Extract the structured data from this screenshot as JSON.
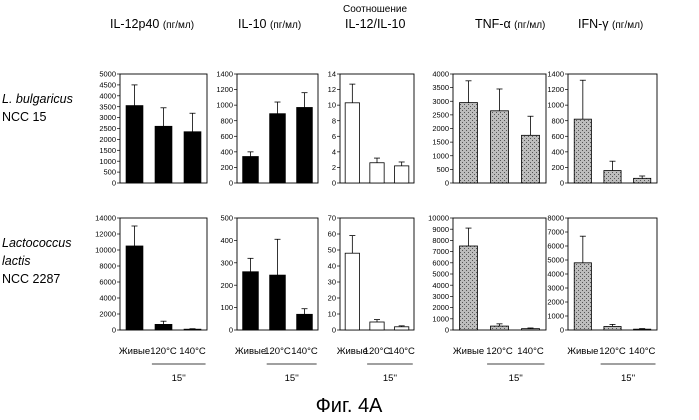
{
  "column_headers": [
    {
      "name": "IL-12p40",
      "unit": "(пг/мл)"
    },
    {
      "name": "IL-10",
      "unit": "(пг/мл)"
    },
    {
      "prefix": "Соотношение",
      "name": "IL-12/IL-10",
      "unit": ""
    },
    {
      "name": "TNF-α",
      "unit": "(пг/мл)"
    },
    {
      "name": "IFN-γ",
      "unit": "(пг/мл)"
    }
  ],
  "rows": [
    {
      "label_lines": [
        "L. bulgaricus"
      ],
      "strain": "NCC 15"
    },
    {
      "label_lines": [
        "Lactococcus",
        "lactis"
      ],
      "strain": "NCC 2287"
    }
  ],
  "x_categories": [
    "Живые",
    "120°C",
    "140°C"
  ],
  "duration_label": "15''",
  "caption": "Фиг. 4А",
  "colors": {
    "cytokine_bar": "#000000",
    "ratio_bar": "#ffffff",
    "tnf_ifn_bar": "#b9b9b9",
    "axis": "#000000"
  },
  "chart_data": [
    {
      "type": "bar",
      "row": 0,
      "col": 0,
      "categories": [
        "Живые",
        "120°C",
        "140°C"
      ],
      "values": [
        3550,
        2600,
        2350
      ],
      "errors": [
        950,
        850,
        850
      ],
      "ylim": [
        0,
        5000
      ],
      "yticks": [
        0,
        500,
        1000,
        1500,
        2000,
        2500,
        3000,
        3500,
        4000,
        4500,
        5000
      ],
      "fill": "solid"
    },
    {
      "type": "bar",
      "row": 0,
      "col": 1,
      "categories": [
        "Живые",
        "120°C",
        "140°C"
      ],
      "values": [
        340,
        890,
        970
      ],
      "errors": [
        60,
        150,
        190
      ],
      "ylim": [
        0,
        1400
      ],
      "yticks": [
        0,
        200,
        400,
        600,
        800,
        1000,
        1200,
        1400
      ],
      "fill": "solid"
    },
    {
      "type": "bar",
      "row": 0,
      "col": 2,
      "categories": [
        "Живые",
        "120°C",
        "140°C"
      ],
      "values": [
        10.3,
        2.6,
        2.2
      ],
      "errors": [
        2.4,
        0.6,
        0.5
      ],
      "ylim": [
        0,
        14
      ],
      "yticks": [
        0,
        2,
        4,
        6,
        8,
        10,
        12,
        14
      ],
      "fill": "open"
    },
    {
      "type": "bar",
      "row": 0,
      "col": 3,
      "categories": [
        "Живые",
        "120°C",
        "140°C"
      ],
      "values": [
        2950,
        2650,
        1750
      ],
      "errors": [
        800,
        800,
        700
      ],
      "ylim": [
        0,
        4000
      ],
      "yticks": [
        0,
        500,
        1000,
        1500,
        2000,
        2500,
        3000,
        3500,
        4000
      ],
      "fill": "dotted"
    },
    {
      "type": "bar",
      "row": 0,
      "col": 4,
      "categories": [
        "Живые",
        "120°C",
        "140°C"
      ],
      "values": [
        820,
        160,
        60
      ],
      "errors": [
        500,
        120,
        30
      ],
      "ylim": [
        0,
        1400
      ],
      "yticks": [
        0,
        200,
        400,
        600,
        800,
        1000,
        1200,
        1400
      ],
      "fill": "dotted"
    },
    {
      "type": "bar",
      "row": 1,
      "col": 0,
      "categories": [
        "Живые",
        "120°C",
        "140°C"
      ],
      "values": [
        10500,
        700,
        100
      ],
      "errors": [
        2500,
        400,
        60
      ],
      "ylim": [
        0,
        14000
      ],
      "yticks": [
        0,
        2000,
        4000,
        6000,
        8000,
        10000,
        12000,
        14000
      ],
      "fill": "solid"
    },
    {
      "type": "bar",
      "row": 1,
      "col": 1,
      "categories": [
        "Живые",
        "120°C",
        "140°C"
      ],
      "values": [
        260,
        245,
        70
      ],
      "errors": [
        60,
        160,
        25
      ],
      "ylim": [
        0,
        500
      ],
      "yticks": [
        0,
        100,
        200,
        300,
        400,
        500
      ],
      "fill": "solid"
    },
    {
      "type": "bar",
      "row": 1,
      "col": 2,
      "categories": [
        "Живые",
        "120°C",
        "140°C"
      ],
      "values": [
        48,
        5,
        2
      ],
      "errors": [
        11,
        1.5,
        0.6
      ],
      "ylim": [
        0,
        70
      ],
      "yticks": [
        0,
        10,
        20,
        30,
        40,
        50,
        60,
        70
      ],
      "fill": "open"
    },
    {
      "type": "bar",
      "row": 1,
      "col": 3,
      "categories": [
        "Живые",
        "120°C",
        "140°C"
      ],
      "values": [
        7500,
        350,
        120
      ],
      "errors": [
        1600,
        200,
        60
      ],
      "ylim": [
        0,
        10000
      ],
      "yticks": [
        0,
        1000,
        2000,
        3000,
        4000,
        5000,
        6000,
        7000,
        8000,
        9000,
        10000
      ],
      "fill": "dotted"
    },
    {
      "type": "bar",
      "row": 1,
      "col": 4,
      "categories": [
        "Живые",
        "120°C",
        "140°C"
      ],
      "values": [
        4800,
        250,
        60
      ],
      "errors": [
        1900,
        150,
        40
      ],
      "ylim": [
        0,
        8000
      ],
      "yticks": [
        0,
        1000,
        2000,
        3000,
        4000,
        5000,
        6000,
        7000,
        8000
      ],
      "fill": "dotted"
    }
  ]
}
